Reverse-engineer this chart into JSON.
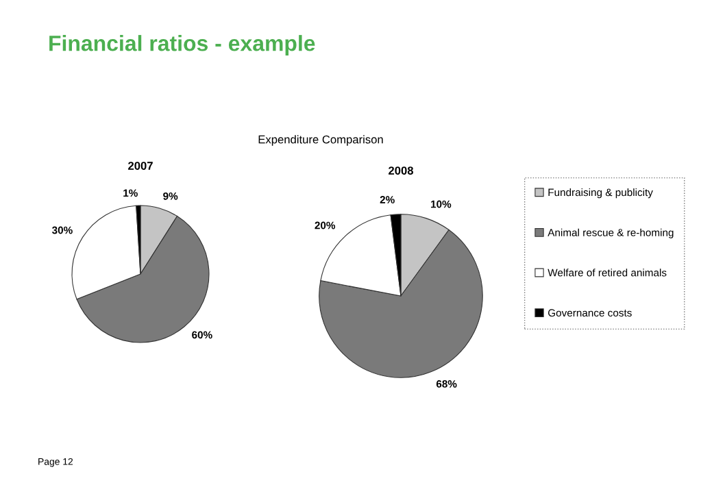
{
  "chart_data": {
    "type": "pie",
    "title": "Expenditure Comparison",
    "categories": [
      "Fundraising & publicity",
      "Animal rescue & re-homing",
      "Welfare of retired animals",
      "Governance costs"
    ],
    "colors": [
      "#c4c4c4",
      "#7a7a7a",
      "#ffffff",
      "#000000"
    ],
    "series": [
      {
        "name": "2007",
        "values": [
          9,
          60,
          30,
          1
        ],
        "value_labels": [
          "9%",
          "60%",
          "30%",
          "1%"
        ]
      },
      {
        "name": "2008",
        "values": [
          10,
          68,
          20,
          2
        ],
        "value_labels": [
          "10%",
          "68%",
          "20%",
          "2%"
        ]
      }
    ],
    "legend": "right",
    "annotations": [
      "Financial ratios - example",
      "Page 12"
    ]
  }
}
